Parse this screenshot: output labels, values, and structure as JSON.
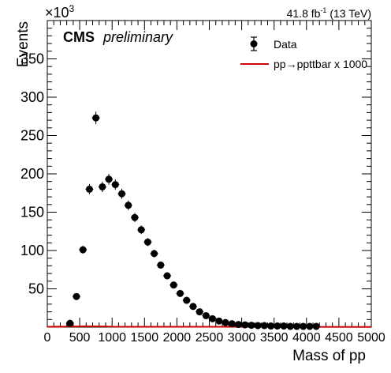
{
  "header": {
    "exponent_base": "×10",
    "exponent_power": "3",
    "lumi_value": "41.8 fb",
    "lumi_sup": "-1",
    "lumi_energy": " (13 TeV)",
    "cms": "CMS",
    "preliminary": "preliminary"
  },
  "legend": {
    "data_label": "Data",
    "signal_label": "pp→ppttbar x 1000"
  },
  "colors": {
    "data": "#000000",
    "signal": "#cc0000",
    "axis": "#000000"
  },
  "chart_data": {
    "type": "scatter",
    "xlabel": "Mass of pp",
    "ylabel": "Events",
    "xlim": [
      0,
      5000
    ],
    "ylim": [
      0,
      400
    ],
    "y_multiplier": "x10^3",
    "xticks": [
      0,
      500,
      1000,
      1500,
      2000,
      2500,
      3000,
      3500,
      4000,
      4500,
      5000
    ],
    "yticks": [
      50,
      100,
      150,
      200,
      250,
      300,
      350
    ],
    "grid": false,
    "legend_position": "top-right",
    "series": [
      {
        "name": "Data",
        "style": "markers-with-error-bars",
        "x": [
          350,
          450,
          550,
          650,
          750,
          850,
          950,
          1050,
          1150,
          1250,
          1350,
          1450,
          1550,
          1650,
          1750,
          1850,
          1950,
          2050,
          2150,
          2250,
          2350,
          2450,
          2550,
          2650,
          2750,
          2850,
          2950,
          3050,
          3150,
          3250,
          3350,
          3450,
          3550,
          3650,
          3750,
          3850,
          3950,
          4050,
          4150
        ],
        "y": [
          5,
          40,
          101,
          180,
          273,
          183,
          193,
          186,
          174,
          159,
          143,
          127,
          111,
          96,
          81,
          67,
          55,
          44,
          35,
          27,
          20,
          15,
          11,
          8,
          6,
          4.5,
          3.5,
          3,
          2.5,
          2,
          2,
          1.5,
          1.5,
          1.5,
          1,
          1,
          1,
          1,
          1
        ]
      },
      {
        "name": "pp→ppttbar x 1000",
        "style": "line",
        "x": [
          0,
          300,
          600,
          800,
          1000,
          5000
        ],
        "y": [
          0.5,
          0.8,
          1.2,
          1.0,
          0.6,
          0.3
        ]
      }
    ]
  }
}
